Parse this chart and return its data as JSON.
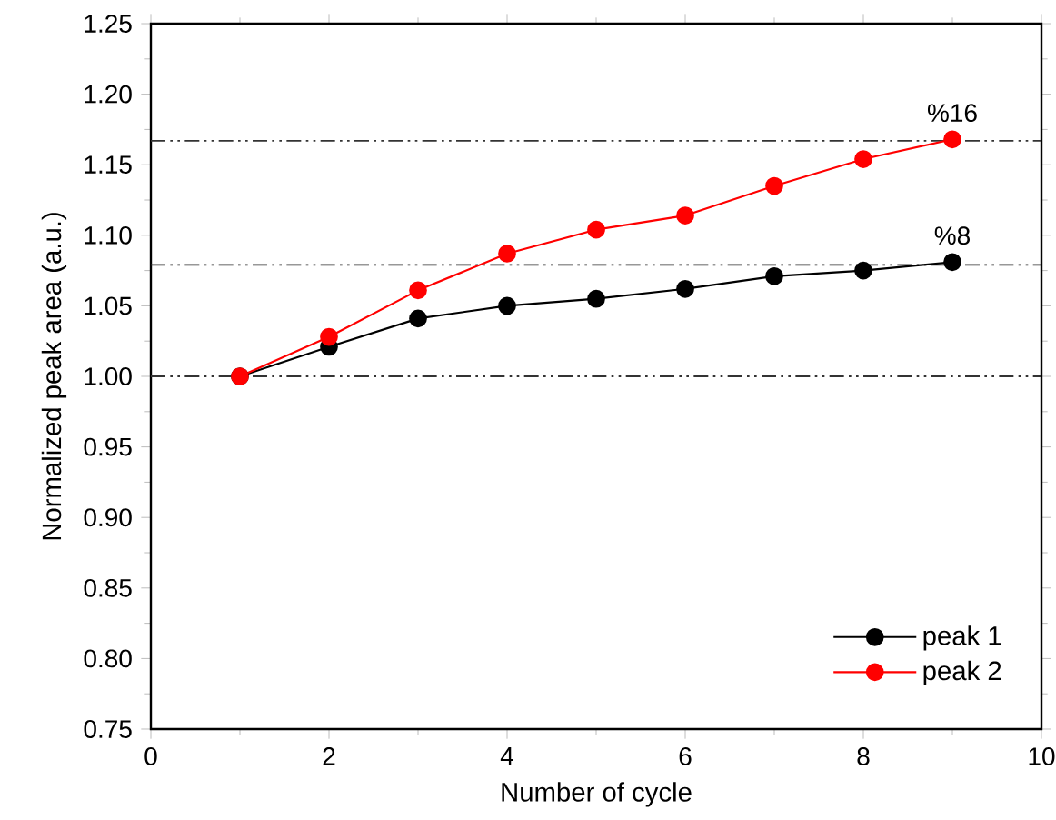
{
  "chart_data": {
    "type": "line",
    "xlabel": "Number of cycle",
    "ylabel": "Normalized peak area (a.u.)",
    "x": [
      1,
      2,
      3,
      4,
      5,
      6,
      7,
      8,
      9
    ],
    "series": [
      {
        "name": "peak 1",
        "color": "#000000",
        "values": [
          1.0,
          1.021,
          1.041,
          1.05,
          1.055,
          1.062,
          1.071,
          1.075,
          1.081
        ]
      },
      {
        "name": "peak 2",
        "color": "#ff0000",
        "values": [
          1.0,
          1.028,
          1.061,
          1.087,
          1.104,
          1.114,
          1.135,
          1.154,
          1.168
        ]
      }
    ],
    "xlim": [
      0,
      10
    ],
    "xticks": [
      0,
      2,
      4,
      6,
      8,
      10
    ],
    "ylim": [
      0.75,
      1.25
    ],
    "yticks": [
      {
        "value": 0.75,
        "label": "0.75"
      },
      {
        "value": 0.8,
        "label": "0.80"
      },
      {
        "value": 0.85,
        "label": "0.85"
      },
      {
        "value": 0.9,
        "label": "0.90"
      },
      {
        "value": 0.95,
        "label": "0.95"
      },
      {
        "value": 1.0,
        "label": "1.00"
      },
      {
        "value": 1.05,
        "label": "1.05"
      },
      {
        "value": 1.1,
        "label": "1.10"
      },
      {
        "value": 1.15,
        "label": "1.15"
      },
      {
        "value": 1.2,
        "label": "1.20"
      },
      {
        "value": 1.25,
        "label": "1.25"
      }
    ],
    "ref_lines": [
      {
        "axis": "y",
        "value": 1.0,
        "color": "#333333",
        "line_style": "dashdotdot"
      },
      {
        "axis": "y",
        "value": 1.079,
        "color": "#333333",
        "line_style": "dashdotdot"
      },
      {
        "axis": "y",
        "value": 1.167,
        "color": "#333333",
        "line_style": "dashdotdot"
      }
    ],
    "annotations": [
      {
        "text": "%16",
        "x": 9,
        "y": 1.168
      },
      {
        "text": "%8",
        "x": 9,
        "y": 1.081
      }
    ],
    "legend": "bottom right",
    "marker": "circle",
    "line_style": "solid",
    "grid": false
  }
}
